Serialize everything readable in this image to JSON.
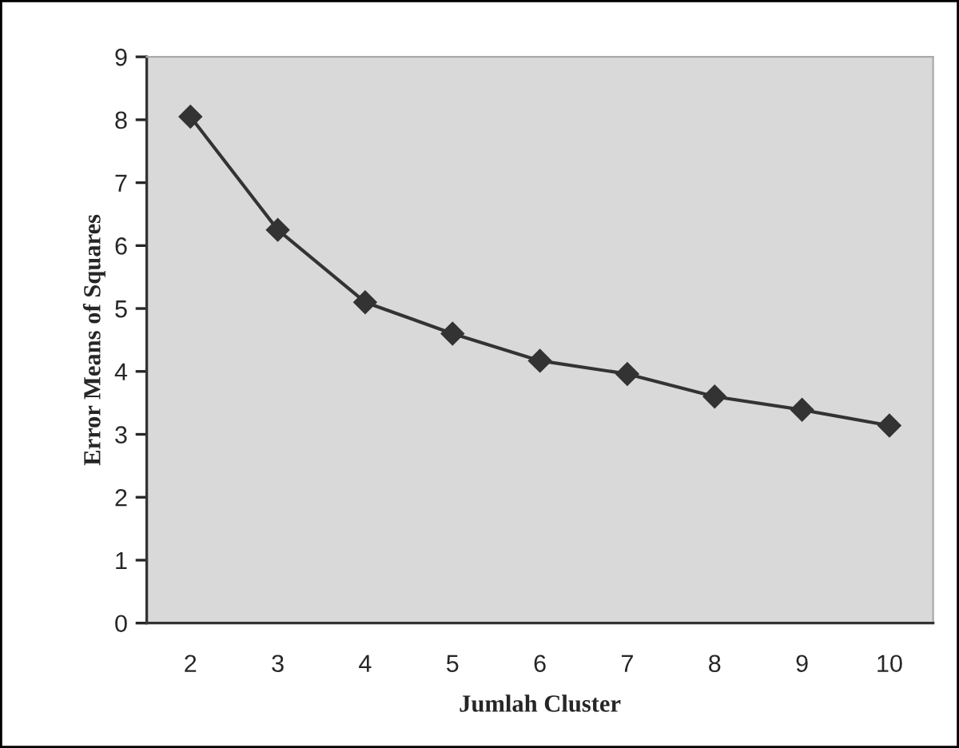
{
  "chart_data": {
    "type": "line",
    "xlabel": "Jumlah Cluster",
    "ylabel": "Error Means of Squares",
    "categories": [
      "2",
      "3",
      "4",
      "5",
      "6",
      "7",
      "8",
      "9",
      "10"
    ],
    "series": [
      {
        "color": "#333333",
        "values": [
          8.05,
          6.25,
          5.1,
          4.6,
          4.17,
          3.96,
          3.6,
          3.39,
          3.14
        ]
      }
    ],
    "ylim": [
      0,
      9
    ],
    "yticks": [
      0,
      1,
      2,
      3,
      4,
      5,
      6,
      7,
      8,
      9
    ],
    "marker": "diamond",
    "line_style": "solid",
    "grid": false,
    "legend": false
  }
}
